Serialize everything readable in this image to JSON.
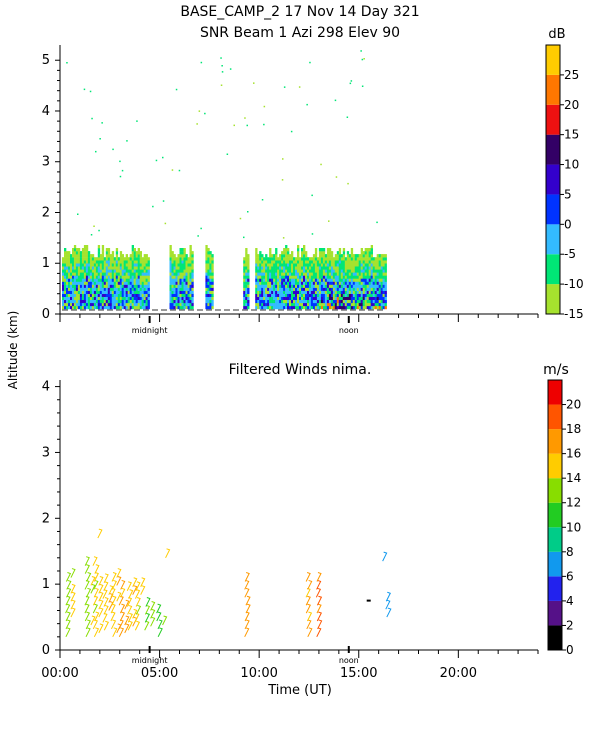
{
  "header": {
    "line1": "BASE_CAMP_2   17 Nov 14 Day 321",
    "line2": "SNR Beam 1 Azi 298 Elev 90"
  },
  "shared": {
    "ylabel": "Altitude (km)",
    "xlabel": "Time (UT)",
    "marker_midnight": "midnight",
    "marker_noon": "noon"
  },
  "chart_data": [
    {
      "type": "heatmap",
      "title": "SNR Beam 1 Azi 298 Elev 90",
      "ylim": [
        0,
        5.3
      ],
      "xlim": [
        0,
        24
      ],
      "y_ticks": [
        "0",
        "1",
        "2",
        "3",
        "4",
        "5"
      ],
      "colorbar": {
        "unit": "dB",
        "range": [
          -15,
          30
        ],
        "labels": [
          "-15",
          "-10",
          "-5",
          "0",
          "5",
          "10",
          "15",
          "20",
          "25"
        ],
        "colors": [
          "#a6e22e",
          "#00e676",
          "#33bbff",
          "#0033ff",
          "#3300cc",
          "#330066",
          "#ee1111",
          "#ff7700",
          "#ffcc00"
        ]
      },
      "segments_hours": [
        [
          0.1,
          4.5
        ],
        [
          5.5,
          6.6
        ],
        [
          7.3,
          7.6
        ],
        [
          9.2,
          9.4
        ],
        [
          9.8,
          16.3
        ]
      ],
      "top_km": 1.2
    },
    {
      "type": "scatter",
      "title": "Filtered Winds nima.",
      "ylim": [
        0,
        4.1
      ],
      "xlim": [
        0,
        24
      ],
      "y_ticks": [
        "0",
        "1",
        "2",
        "3",
        "4"
      ],
      "x_ticks": [
        "00:00",
        "05:00",
        "10:00",
        "15:00",
        "20:00"
      ],
      "colorbar": {
        "unit": "m/s",
        "range": [
          0,
          22
        ],
        "labels": [
          "0",
          "2",
          "4",
          "6",
          "8",
          "10",
          "12",
          "14",
          "16",
          "18",
          "20"
        ],
        "colors": [
          "#000000",
          "#551188",
          "#2222ee",
          "#1199ee",
          "#00cc88",
          "#22cc22",
          "#88dd00",
          "#ffcc00",
          "#ff9900",
          "#ff5500",
          "#ee0000"
        ]
      },
      "columns": [
        {
          "time": 0.3,
          "from": 0.2,
          "to": 1.1,
          "speed": 13
        },
        {
          "time": 1.3,
          "from": 0.2,
          "to": 1.4,
          "speed": 13
        },
        {
          "time": 1.7,
          "from": 0.2,
          "to": 1.3,
          "speed": 14
        },
        {
          "time": 2.2,
          "from": 0.3,
          "to": 1.1,
          "speed": 15
        },
        {
          "time": 2.6,
          "from": 0.2,
          "to": 1.1,
          "speed": 15
        },
        {
          "time": 3.0,
          "from": 0.2,
          "to": 1.0,
          "speed": 16
        },
        {
          "time": 3.4,
          "from": 0.3,
          "to": 1.0,
          "speed": 15
        },
        {
          "time": 3.8,
          "from": 0.3,
          "to": 0.9,
          "speed": 14
        },
        {
          "time": 4.3,
          "from": 0.3,
          "to": 0.7,
          "speed": 12
        },
        {
          "time": 4.9,
          "from": 0.2,
          "to": 0.6,
          "speed": 11
        },
        {
          "time": 9.3,
          "from": 0.2,
          "to": 1.1,
          "speed": 17
        },
        {
          "time": 12.4,
          "from": 0.2,
          "to": 1.1,
          "speed": 16
        },
        {
          "time": 12.9,
          "from": 0.2,
          "to": 1.1,
          "speed": 18
        },
        {
          "time": 16.4,
          "from": 0.5,
          "to": 0.8,
          "speed": 7
        }
      ],
      "isolated": [
        {
          "time": 1.9,
          "alt": 1.7,
          "speed": 14
        },
        {
          "time": 5.3,
          "alt": 1.4,
          "speed": 15
        },
        {
          "time": 16.2,
          "alt": 1.35,
          "speed": 7
        },
        {
          "time": 15.5,
          "alt": 0.75,
          "speed": 0
        }
      ]
    }
  ]
}
